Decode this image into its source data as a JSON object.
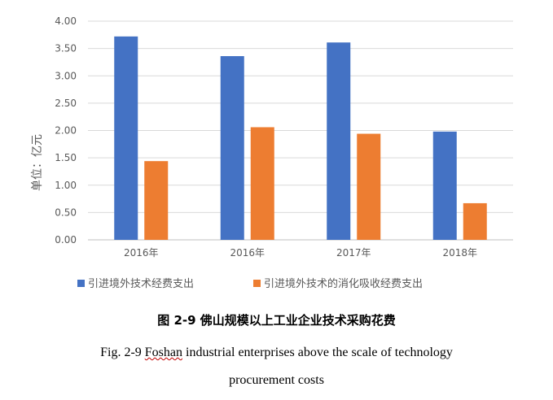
{
  "chart_data": {
    "type": "bar",
    "categories": [
      "2016年",
      "2016年",
      "2017年",
      "2018年"
    ],
    "series": [
      {
        "name": "引进境外技术经费支出",
        "values": [
          3.72,
          3.36,
          3.61,
          1.98
        ],
        "color": "#4472C4"
      },
      {
        "name": "引进境外技术的消化吸收经费支出",
        "values": [
          1.44,
          2.06,
          1.94,
          0.67
        ],
        "color": "#ED7D31"
      }
    ],
    "ylabel": "单位：亿元",
    "ylim": [
      0,
      4
    ],
    "yticks": [
      "0.00",
      "0.50",
      "1.00",
      "1.50",
      "2.00",
      "2.50",
      "3.00",
      "3.50",
      "4.00"
    ],
    "grid": true,
    "legend": "bottom"
  },
  "caption": {
    "cn": "图 2-9 佛山规模以上工业企业技术采购花费",
    "en_prefix": "Fig. 2-9 ",
    "en_underlined": "Foshan",
    "en_rest": " industrial enterprises above the scale of technology",
    "en_line2": "procurement costs"
  }
}
